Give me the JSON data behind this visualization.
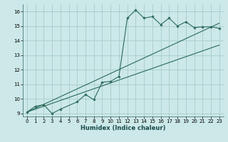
{
  "xlabel": "Humidex (Indice chaleur)",
  "bg_color": "#cce8e8",
  "grid_color": "#a8cccc",
  "line_color": "#2a6b5a",
  "xlim": [
    -0.5,
    23.5
  ],
  "ylim": [
    8.8,
    16.5
  ],
  "xticks": [
    0,
    1,
    2,
    3,
    4,
    5,
    6,
    7,
    8,
    9,
    10,
    11,
    12,
    13,
    14,
    15,
    16,
    17,
    18,
    19,
    20,
    21,
    22,
    23
  ],
  "yticks": [
    9,
    10,
    11,
    12,
    13,
    14,
    15,
    16
  ],
  "line1_x": [
    0,
    1,
    2,
    3,
    4,
    6,
    7,
    8,
    9,
    10,
    11,
    12,
    13,
    14,
    15,
    16,
    17,
    18,
    19,
    20,
    21,
    22,
    23
  ],
  "line1_y": [
    9.1,
    9.5,
    9.6,
    9.0,
    9.3,
    9.8,
    10.3,
    9.95,
    11.15,
    11.2,
    11.55,
    15.55,
    16.1,
    15.55,
    15.65,
    15.1,
    15.55,
    15.0,
    15.3,
    14.9,
    14.95,
    14.95,
    14.85
  ],
  "line2_x": [
    0,
    23
  ],
  "line2_y": [
    9.1,
    13.7
  ],
  "line3_x": [
    0,
    23
  ],
  "line3_y": [
    9.1,
    15.2
  ]
}
